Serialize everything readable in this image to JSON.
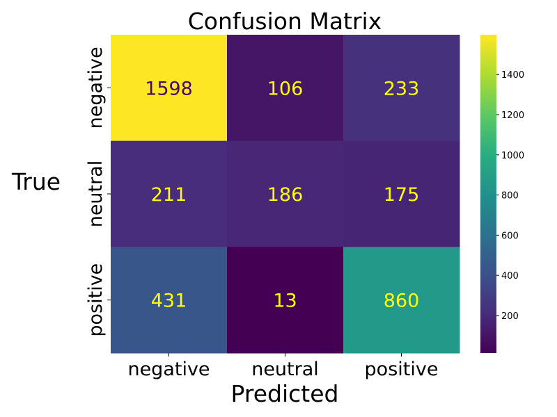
{
  "chart_data": {
    "type": "heatmap",
    "title": "Confusion Matrix",
    "xlabel": "Predicted",
    "ylabel": "True",
    "x_categories": [
      "negative",
      "neutral",
      "positive"
    ],
    "y_categories": [
      "negative",
      "neutral",
      "positive"
    ],
    "values": [
      [
        1598,
        106,
        233
      ],
      [
        211,
        186,
        175
      ],
      [
        431,
        13,
        860
      ]
    ],
    "colormap": "viridis",
    "annotation_color": "#ffff00",
    "annotation_color_on_light": "#4a0a5e",
    "colorbar": {
      "range": [
        13,
        1598
      ],
      "ticks": [
        200,
        400,
        600,
        800,
        1000,
        1200,
        1400
      ]
    },
    "grid": false,
    "legend": "colorbar-right"
  }
}
